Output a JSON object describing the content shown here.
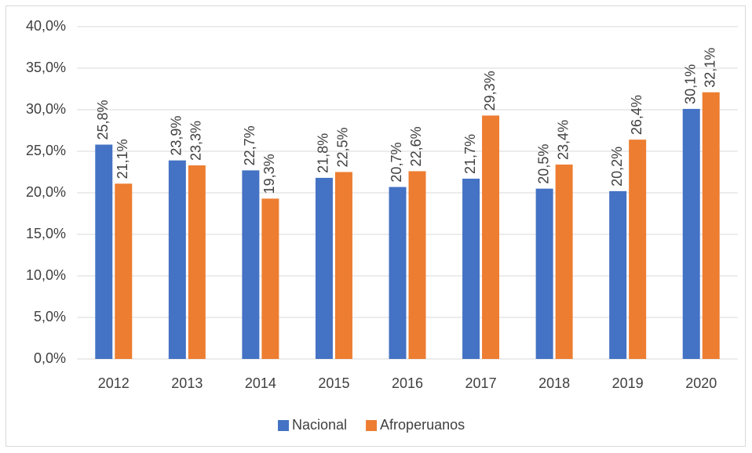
{
  "chart_data": {
    "type": "bar",
    "categories": [
      "2012",
      "2013",
      "2014",
      "2015",
      "2016",
      "2017",
      "2018",
      "2019",
      "2020"
    ],
    "series": [
      {
        "name": "Nacional",
        "color": "#4472c4",
        "values": [
          25.8,
          23.9,
          22.7,
          21.8,
          20.7,
          21.7,
          20.5,
          20.2,
          30.1
        ],
        "value_labels": [
          "25,8%",
          "23,9%",
          "22,7%",
          "21,8%",
          "20,7%",
          "21,7%",
          "20,5%",
          "20,2%",
          "30,1%"
        ]
      },
      {
        "name": "Afroperuanos",
        "color": "#ed7d31",
        "values": [
          21.1,
          23.3,
          19.3,
          22.5,
          22.6,
          29.3,
          23.4,
          26.4,
          32.1
        ],
        "value_labels": [
          "21,1%",
          "23,3%",
          "19,3%",
          "22,5%",
          "22,6%",
          "29,3%",
          "23,4%",
          "26,4%",
          "32,1%"
        ]
      }
    ],
    "ylim": [
      0,
      40
    ],
    "yticks": [
      {
        "value": 0,
        "label": "0,0%"
      },
      {
        "value": 5,
        "label": "5,0%"
      },
      {
        "value": 10,
        "label": "10,0%"
      },
      {
        "value": 15,
        "label": "15,0%"
      },
      {
        "value": 20,
        "label": "20,0%"
      },
      {
        "value": 25,
        "label": "25,0%"
      },
      {
        "value": 30,
        "label": "30,0%"
      },
      {
        "value": 35,
        "label": "35,0%"
      },
      {
        "value": 40,
        "label": "40,0%"
      }
    ],
    "grid": true,
    "legend": "bottom"
  }
}
